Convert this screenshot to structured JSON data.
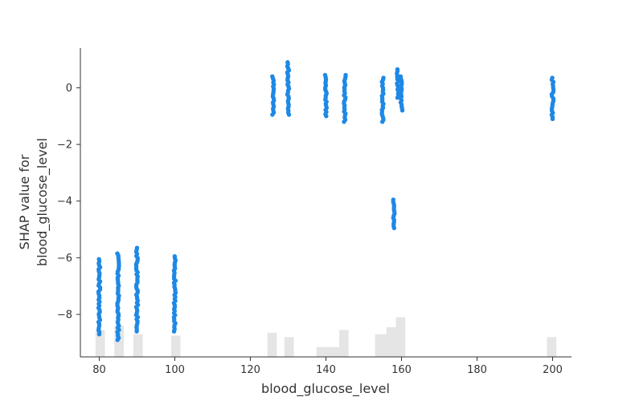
{
  "chart_data": {
    "type": "scatter",
    "title": "",
    "xlabel": "blood_glucose_level",
    "ylabel_lines": [
      "SHAP value for",
      "blood_glucose_level"
    ],
    "xlim": [
      75,
      205
    ],
    "ylim": [
      -9.5,
      1.4
    ],
    "x_ticks": [
      80,
      100,
      120,
      140,
      160,
      180,
      200
    ],
    "y_ticks": [
      0,
      -2,
      -4,
      -6,
      -8
    ],
    "point_color": "#1e88e5",
    "histogram_color": "#e5e5e5",
    "grid": false,
    "legend": "none",
    "groups": [
      {
        "x": 80,
        "y_min": -8.7,
        "y_max": -6.05
      },
      {
        "x": 85,
        "y_min": -8.9,
        "y_max": -5.85
      },
      {
        "x": 90,
        "y_min": -8.6,
        "y_max": -5.65
      },
      {
        "x": 100,
        "y_min": -8.6,
        "y_max": -5.95
      },
      {
        "x": 126,
        "y_min": -0.95,
        "y_max": 0.4
      },
      {
        "x": 130,
        "y_min": -0.95,
        "y_max": 0.9
      },
      {
        "x": 140,
        "y_min": -1.0,
        "y_max": 0.45
      },
      {
        "x": 145,
        "y_min": -1.2,
        "y_max": 0.45
      },
      {
        "x": 155,
        "y_min": -1.2,
        "y_max": 0.35
      },
      {
        "x": 158,
        "y_min": -4.95,
        "y_max": -3.95
      },
      {
        "x": 159,
        "y_min": -0.35,
        "y_max": 0.65
      },
      {
        "x": 160,
        "y_min": -0.8,
        "y_max": 0.4
      },
      {
        "x": 200,
        "y_min": -1.1,
        "y_max": 0.35
      }
    ],
    "histogram": [
      {
        "x0": 79,
        "x1": 81.5,
        "height": 0.95
      },
      {
        "x0": 84,
        "x1": 86.5,
        "height": 1.1
      },
      {
        "x0": 89,
        "x1": 91.5,
        "height": 0.8
      },
      {
        "x0": 99,
        "x1": 101.5,
        "height": 0.75
      },
      {
        "x0": 124.5,
        "x1": 127,
        "height": 0.85
      },
      {
        "x0": 129,
        "x1": 131.5,
        "height": 0.7
      },
      {
        "x0": 137.5,
        "x1": 143.5,
        "height": 0.35
      },
      {
        "x0": 143.5,
        "x1": 146,
        "height": 0.95
      },
      {
        "x0": 153,
        "x1": 156,
        "height": 0.8
      },
      {
        "x0": 156,
        "x1": 158.5,
        "height": 1.05
      },
      {
        "x0": 158.5,
        "x1": 161,
        "height": 1.4
      },
      {
        "x0": 198.5,
        "x1": 201,
        "height": 0.7
      }
    ]
  }
}
